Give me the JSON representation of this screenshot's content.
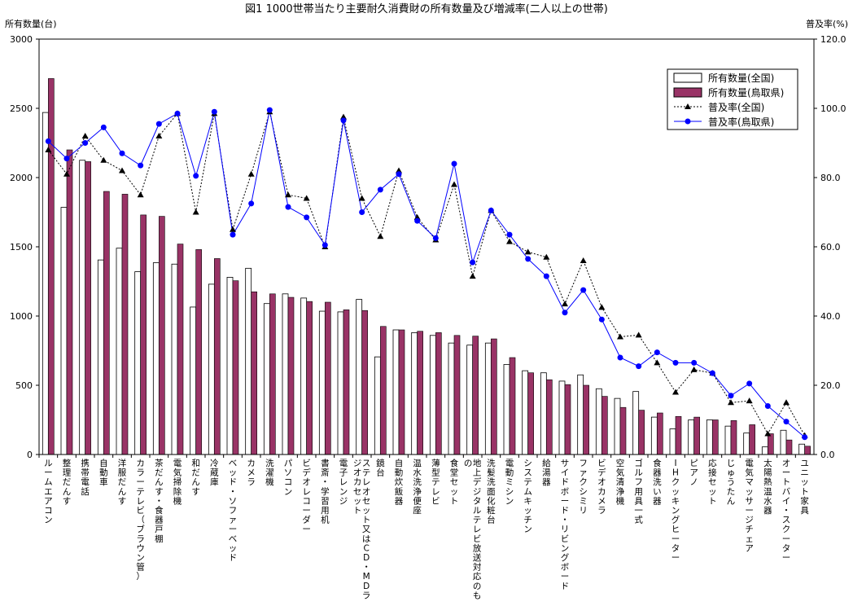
{
  "chart_data": {
    "type": "bar",
    "title": "図1 1000世帯当たり主要耐久消費財の所有数量及び増減率(二人以上の世帯)",
    "ylabel": "所有数量(台)",
    "y2label": "普及率(%)",
    "ylim": [
      0,
      3000
    ],
    "y2lim": [
      0,
      120
    ],
    "yticks": [
      "0",
      "500",
      "1000",
      "1500",
      "2000",
      "2500",
      "3000"
    ],
    "y2ticks": [
      "0.0",
      "20.0",
      "40.0",
      "60.0",
      "80.0",
      "100.0",
      "120.0"
    ],
    "grid": false,
    "legend_position": "top-right",
    "categories": [
      "ルームエアコン",
      "整理だんす",
      "携帯電話",
      "自動車",
      "洋服だんす",
      "カラーテレビ（ブラウン管）",
      "茶だんす・食器戸棚",
      "電気掃除機",
      "和だんす",
      "冷蔵庫",
      "ベッド・ソファーベッド",
      "カメラ",
      "洗濯機",
      "パソコン",
      "ビデオレコーダー",
      "書斎・学習用机",
      "電子レンジ",
      "ステレオセット又はCD・MDラジオカセット",
      "鏡台",
      "自動炊飯器",
      "温水洗浄便座",
      "薄型テレビ",
      "食堂セット",
      "地上デジタルテレビ放送対応のもの",
      "洗髪洗面化粧台",
      "電動ミシン",
      "システムキッチン",
      "給湯器",
      "サイドボード・リビングボード",
      "ファクシミリ",
      "ビデオカメラ",
      "空気清浄機",
      "ゴルフ用具一式",
      "食器洗い器",
      "IHクッキングヒーター",
      "ピアノ",
      "応接セット",
      "じゅうたん",
      "電気マッサージチェア",
      "太陽熱温水器",
      "オートバイ・スクーター",
      "ユニット家具"
    ],
    "series": [
      {
        "name": "所有数量(全国)",
        "kind": "bar",
        "axis": "left",
        "color": "#ffffff",
        "values": [
          2470,
          1785,
          2125,
          1405,
          1490,
          1320,
          1385,
          1375,
          1065,
          1230,
          1280,
          1345,
          1090,
          1160,
          1130,
          1035,
          1030,
          1120,
          705,
          900,
          880,
          860,
          805,
          790,
          805,
          650,
          605,
          590,
          530,
          575,
          475,
          405,
          455,
          270,
          185,
          250,
          250,
          205,
          155,
          55,
          175,
          75
        ]
      },
      {
        "name": "所有数量(鳥取県)",
        "kind": "bar",
        "axis": "left",
        "color": "#993366",
        "values": [
          2715,
          2200,
          2115,
          1900,
          1880,
          1730,
          1720,
          1520,
          1480,
          1415,
          1255,
          1175,
          1160,
          1135,
          1105,
          1100,
          1045,
          1040,
          925,
          900,
          890,
          880,
          860,
          855,
          835,
          700,
          590,
          540,
          505,
          500,
          420,
          340,
          320,
          300,
          275,
          270,
          250,
          245,
          215,
          150,
          105,
          60
        ]
      },
      {
        "name": "普及率(全国)",
        "kind": "line",
        "axis": "right",
        "color": "#000000",
        "values": [
          88.0,
          81.0,
          92.0,
          85.0,
          82.0,
          75.0,
          92.0,
          98.5,
          70.0,
          98.5,
          65.0,
          81.0,
          99.0,
          75.0,
          74.0,
          60.0,
          97.5,
          74.0,
          63.0,
          82.0,
          68.5,
          62.0,
          78.0,
          51.5,
          70.5,
          61.5,
          58.5,
          57.0,
          43.5,
          56.0,
          42.5,
          34.0,
          34.5,
          26.5,
          18.0,
          24.5,
          23.5,
          15.0,
          15.5,
          6.0,
          15.0,
          5.5
        ]
      },
      {
        "name": "普及率(鳥取県)",
        "kind": "line",
        "axis": "right",
        "color": "#0000ff",
        "values": [
          90.5,
          85.5,
          90.0,
          94.5,
          87.0,
          83.5,
          95.5,
          98.5,
          80.5,
          99.0,
          63.5,
          72.5,
          99.5,
          71.5,
          68.5,
          60.5,
          96.5,
          70.0,
          76.5,
          81.0,
          67.5,
          62.5,
          84.0,
          55.5,
          70.5,
          63.5,
          56.5,
          51.5,
          41.0,
          47.5,
          39.0,
          28.0,
          25.5,
          29.5,
          26.5,
          26.5,
          23.5,
          17.0,
          20.5,
          14.0,
          9.5,
          5.0
        ]
      }
    ]
  }
}
